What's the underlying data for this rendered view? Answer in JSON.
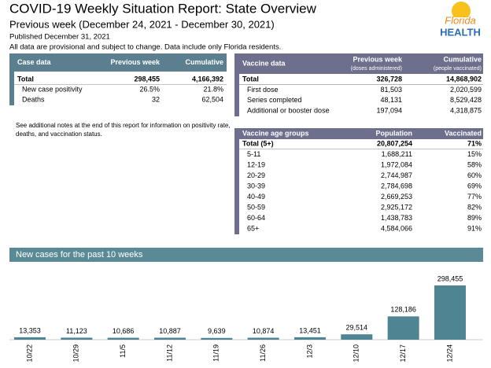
{
  "header": {
    "title": "COVID-19 Weekly Situation Report: State Overview",
    "subtitle": "Previous week (December 24, 2021 - December 30, 2021)",
    "published": "Published December 31, 2021",
    "disclaimer": "All data are provisional and subject to change. Data include only Florida residents."
  },
  "logo": {
    "line1": "Florida",
    "line2": "HEALTH"
  },
  "case_table": {
    "columns": [
      "Case data",
      "Previous week",
      "Cumulative"
    ],
    "rows": [
      [
        "Total",
        "298,455",
        "4,166,392"
      ],
      [
        "New case positivity",
        "26.5%",
        "21.8%"
      ],
      [
        "Deaths",
        "32",
        "62,504"
      ]
    ]
  },
  "note": [
    "See additional notes at the end of this report for information on positivity rate,",
    "deaths, and vaccination status."
  ],
  "vaccine_table": {
    "columns": [
      "Vaccine data",
      "Previous week",
      "Cumulative"
    ],
    "column_notes": [
      "(doses administered)",
      "(people vaccinated)"
    ],
    "rows": [
      [
        "Total",
        "326,728",
        "14,868,902"
      ],
      [
        "First dose",
        "81,503",
        "2,020,599"
      ],
      [
        "Series completed",
        "48,131",
        "8,529,428"
      ],
      [
        "Additional or booster dose",
        "197,094",
        "4,318,875"
      ]
    ]
  },
  "age_table": {
    "columns": [
      "Vaccine age groups",
      "Population",
      "Vaccinated"
    ],
    "rows": [
      [
        "Total (5+)",
        "20,807,254",
        "71%"
      ],
      [
        "5-11",
        "1,688,211",
        "15%"
      ],
      [
        "12-19",
        "1,972,084",
        "58%"
      ],
      [
        "20-29",
        "2,744,987",
        "60%"
      ],
      [
        "30-39",
        "2,784,698",
        "69%"
      ],
      [
        "40-49",
        "2,669,253",
        "77%"
      ],
      [
        "50-59",
        "2,925,172",
        "82%"
      ],
      [
        "60-64",
        "1,438,783",
        "89%"
      ],
      [
        "65+",
        "4,584,066",
        "91%"
      ]
    ]
  },
  "chart_data": {
    "type": "bar",
    "title": "New cases for the past 10 weeks",
    "categories": [
      "10/22",
      "10/29",
      "11/5",
      "11/12",
      "11/19",
      "11/26",
      "12/3",
      "12/10",
      "12/17",
      "12/24"
    ],
    "values": [
      13353,
      11123,
      10686,
      10887,
      9639,
      10874,
      13451,
      29514,
      128186,
      298455
    ],
    "value_labels": [
      "13,353",
      "11,123",
      "10,686",
      "10,887",
      "9,639",
      "10,874",
      "13,451",
      "29,514",
      "128,186",
      "298,455"
    ],
    "color": "#4f8592"
  }
}
